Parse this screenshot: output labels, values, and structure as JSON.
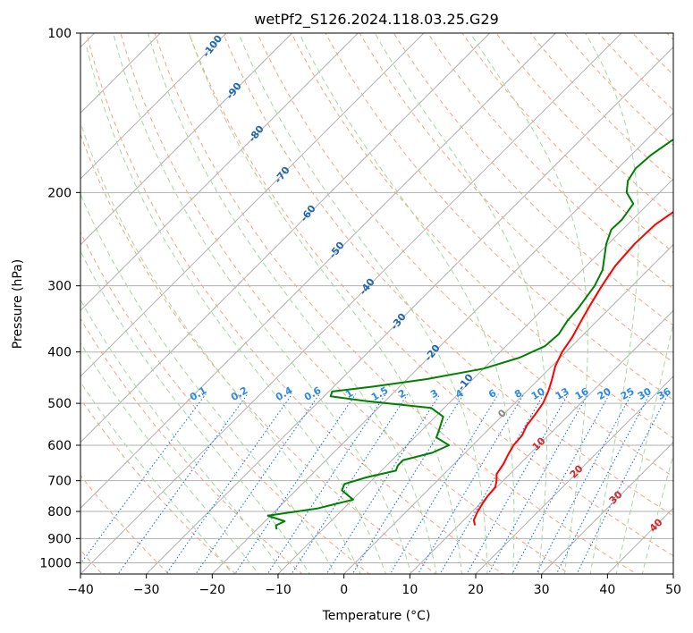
{
  "chart_data": {
    "type": "line",
    "title": "wetPf2_S126.2024.118.03.25.G29",
    "xlabel": "Temperature (°C)",
    "ylabel": "Pressure (hPa)",
    "xlim": [
      -40,
      50
    ],
    "ylim": [
      1050,
      100
    ],
    "y_scale": "log",
    "grid": true,
    "x_ticks": [
      "−40",
      "−30",
      "−20",
      "−10",
      "0",
      "10",
      "20",
      "30",
      "40",
      "50"
    ],
    "y_ticks": [
      {
        "p": 100,
        "label": "100"
      },
      {
        "p": 200,
        "label": "200"
      },
      {
        "p": 300,
        "label": "300"
      },
      {
        "p": 400,
        "label": "400"
      },
      {
        "p": 500,
        "label": "500"
      },
      {
        "p": 600,
        "label": "600"
      },
      {
        "p": 700,
        "label": "700"
      },
      {
        "p": 800,
        "label": "800"
      },
      {
        "p": 900,
        "label": "900"
      },
      {
        "p": 1000,
        "label": "1000"
      }
    ],
    "series": [
      {
        "color": "#ff0000",
        "points": [
          [
            850,
            12.5
          ],
          [
            830,
            11.5
          ],
          [
            800,
            10.8
          ],
          [
            770,
            10.3
          ],
          [
            750,
            10.0
          ],
          [
            720,
            9.8
          ],
          [
            700,
            9.0
          ],
          [
            680,
            8.0
          ],
          [
            650,
            7.5
          ],
          [
            625,
            6.8
          ],
          [
            600,
            6.2
          ],
          [
            575,
            6.0
          ],
          [
            550,
            5.2
          ],
          [
            525,
            4.8
          ],
          [
            500,
            4.3
          ],
          [
            475,
            3.3
          ],
          [
            450,
            2.0
          ],
          [
            425,
            0.5
          ],
          [
            400,
            -0.6
          ],
          [
            375,
            -1.3
          ],
          [
            350,
            -2.4
          ],
          [
            325,
            -3.5
          ],
          [
            300,
            -4.6
          ],
          [
            275,
            -5.6
          ],
          [
            250,
            -6.0
          ],
          [
            230,
            -5.8
          ],
          [
            215,
            -4.8
          ],
          [
            200,
            -1.8
          ],
          [
            185,
            0.6
          ],
          [
            170,
            2.4
          ],
          [
            155,
            3.8
          ],
          [
            140,
            5.0
          ],
          [
            125,
            6.4
          ],
          [
            110,
            8.3
          ],
          [
            100,
            9.7
          ]
        ]
      },
      {
        "color": "#008000",
        "points": [
          [
            865,
            -17.0
          ],
          [
            850,
            -17.7
          ],
          [
            835,
            -17.0
          ],
          [
            815,
            -20.4
          ],
          [
            790,
            -14.0
          ],
          [
            775,
            -12.0
          ],
          [
            760,
            -9.9
          ],
          [
            730,
            -13.0
          ],
          [
            710,
            -13.6
          ],
          [
            690,
            -11.3
          ],
          [
            670,
            -7.8
          ],
          [
            655,
            -8.3
          ],
          [
            640,
            -8.3
          ],
          [
            620,
            -5.0
          ],
          [
            600,
            -3.6
          ],
          [
            580,
            -6.7
          ],
          [
            560,
            -7.5
          ],
          [
            530,
            -8.8
          ],
          [
            510,
            -12.0
          ],
          [
            495,
            -23.0
          ],
          [
            485,
            -29.0
          ],
          [
            475,
            -29.5
          ],
          [
            465,
            -24.0
          ],
          [
            450,
            -17.0
          ],
          [
            430,
            -10.0
          ],
          [
            410,
            -6.2
          ],
          [
            390,
            -4.1
          ],
          [
            370,
            -3.8
          ],
          [
            350,
            -4.5
          ],
          [
            330,
            -4.8
          ],
          [
            300,
            -5.7
          ],
          [
            280,
            -6.9
          ],
          [
            250,
            -10.3
          ],
          [
            235,
            -11.7
          ],
          [
            225,
            -11.6
          ],
          [
            210,
            -12.3
          ],
          [
            200,
            -15.0
          ],
          [
            190,
            -16.6
          ],
          [
            180,
            -17.3
          ],
          [
            170,
            -17.0
          ],
          [
            160,
            -16.1
          ],
          [
            150,
            -14.5
          ],
          [
            140,
            -11.5
          ],
          [
            130,
            -8.8
          ],
          [
            120,
            -6.3
          ],
          [
            110,
            -3.2
          ],
          [
            100,
            0.0
          ]
        ]
      }
    ],
    "mixing_ratio_labels": [
      "0.1",
      "0.2",
      "0.4",
      "0.6",
      "1",
      "1.5",
      "2",
      "3",
      "4",
      "6",
      "8",
      "10",
      "13",
      "16",
      "20",
      "25",
      "30",
      "36"
    ],
    "mixing_ratio_values": [
      0.1,
      0.2,
      0.4,
      0.6,
      1,
      1.5,
      2,
      3,
      4,
      6,
      8,
      10,
      13,
      16,
      20,
      25,
      30,
      36
    ],
    "dry_adiabat_labels": [
      "-100",
      "-90",
      "-80",
      "-70",
      "-60",
      "-50",
      "-40",
      "-30",
      "-20",
      "-10"
    ],
    "dry_adiabat_values": [
      -100,
      -90,
      -80,
      -70,
      -60,
      -50,
      -40,
      -30,
      -20,
      -10
    ],
    "moist_adiabat_labels": [
      "0",
      "10",
      "20",
      "30",
      "40"
    ],
    "moist_adiabat_values": [
      0,
      10,
      20,
      30,
      40
    ],
    "colors": {
      "temperature": "#ff0000",
      "dewpoint": "#008000",
      "isotherm": "#808080",
      "grid": "#b0b0b0",
      "dry_adiabat": "#f4a582",
      "moist_adiabat": "#a6d8a0",
      "mixing_ratio": "#1f77e4",
      "dry_label": "#2166ac",
      "moist_label": "#d62728",
      "mixing_label": "#2a8ae8",
      "base_adiabat": "#d9c2a0"
    }
  }
}
